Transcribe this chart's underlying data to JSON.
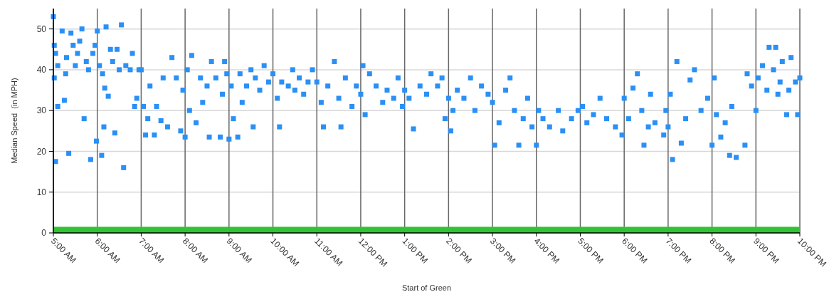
{
  "chart_data": {
    "type": "scatter",
    "xlabel": "Start of Green",
    "ylabel": "Median Speed  (in MPH)",
    "xlim": [
      5,
      22
    ],
    "ylim": [
      0,
      55
    ],
    "yticks": [
      0,
      10,
      20,
      30,
      40,
      50
    ],
    "xticks": [
      {
        "value": 5,
        "label": "5:00 AM"
      },
      {
        "value": 6,
        "label": "6:00 AM"
      },
      {
        "value": 7,
        "label": "7:00 AM"
      },
      {
        "value": 8,
        "label": "8:00 AM"
      },
      {
        "value": 9,
        "label": "9:00 AM"
      },
      {
        "value": 10,
        "label": "10:00 AM"
      },
      {
        "value": 11,
        "label": "11:00 AM"
      },
      {
        "value": 12,
        "label": "12:00 PM"
      },
      {
        "value": 13,
        "label": "1:00 PM"
      },
      {
        "value": 14,
        "label": "2:00 PM"
      },
      {
        "value": 15,
        "label": "3:00 PM"
      },
      {
        "value": 16,
        "label": "4:00 PM"
      },
      {
        "value": 17,
        "label": "5:00 PM"
      },
      {
        "value": 18,
        "label": "6:00 PM"
      },
      {
        "value": 19,
        "label": "7:00 PM"
      },
      {
        "value": 20,
        "label": "8:00 PM"
      },
      {
        "value": 21,
        "label": "9:00 PM"
      },
      {
        "value": 22,
        "label": "10:00 PM"
      }
    ],
    "grid": true,
    "marker": "square",
    "bands": [
      {
        "axis": "y",
        "from": 0,
        "to": 1.5,
        "color": "#33c233"
      }
    ],
    "series": [
      {
        "color": "#2a90f5",
        "x": [
          5.0,
          5.02,
          5.05,
          5.02,
          5.05,
          5.1,
          5.1,
          5.2,
          5.25,
          5.28,
          5.3,
          5.35,
          5.4,
          5.45,
          5.5,
          5.55,
          5.6,
          5.65,
          5.7,
          5.75,
          5.8,
          5.85,
          5.9,
          5.95,
          5.98,
          6.0,
          6.05,
          6.1,
          6.12,
          6.15,
          6.17,
          6.2,
          6.25,
          6.3,
          6.35,
          6.4,
          6.45,
          6.5,
          6.55,
          6.6,
          6.65,
          6.75,
          6.8,
          6.85,
          6.9,
          6.95,
          7.0,
          7.05,
          7.1,
          7.15,
          7.2,
          7.3,
          7.35,
          7.45,
          7.5,
          7.6,
          7.7,
          7.8,
          7.9,
          7.95,
          8.0,
          8.05,
          8.1,
          8.15,
          8.25,
          8.35,
          8.4,
          8.5,
          8.55,
          8.6,
          8.7,
          8.8,
          8.85,
          8.9,
          8.95,
          9.0,
          9.05,
          9.1,
          9.2,
          9.25,
          9.3,
          9.4,
          9.5,
          9.55,
          9.6,
          9.7,
          9.8,
          9.9,
          10.0,
          10.1,
          10.15,
          10.2,
          10.35,
          10.45,
          10.5,
          10.6,
          10.7,
          10.8,
          10.9,
          11.0,
          11.1,
          11.15,
          11.25,
          11.4,
          11.5,
          11.55,
          11.65,
          11.8,
          11.9,
          12.0,
          12.05,
          12.1,
          12.2,
          12.35,
          12.5,
          12.6,
          12.75,
          12.85,
          12.95,
          13.0,
          13.1,
          13.2,
          13.35,
          13.5,
          13.6,
          13.75,
          13.85,
          13.92,
          14.0,
          14.05,
          14.1,
          14.2,
          14.35,
          14.5,
          14.6,
          14.75,
          14.9,
          15.0,
          15.05,
          15.15,
          15.3,
          15.4,
          15.5,
          15.6,
          15.7,
          15.8,
          15.9,
          16.0,
          16.05,
          16.15,
          16.3,
          16.5,
          16.6,
          16.8,
          16.95,
          17.05,
          17.15,
          17.3,
          17.45,
          17.6,
          17.8,
          17.95,
          18.0,
          18.1,
          18.2,
          18.3,
          18.4,
          18.45,
          18.55,
          18.6,
          18.7,
          18.9,
          18.95,
          19.0,
          19.05,
          19.1,
          19.2,
          19.3,
          19.4,
          19.5,
          19.6,
          19.75,
          19.9,
          20.0,
          20.05,
          20.1,
          20.2,
          20.3,
          20.4,
          20.55,
          20.45,
          20.75,
          20.8,
          20.9,
          21.0,
          21.05,
          21.15,
          21.3,
          21.25,
          21.45,
          21.4,
          21.5,
          21.55,
          21.6,
          21.7,
          21.75,
          21.8,
          21.9,
          21.95,
          22.0
        ],
        "values": [
          53,
          46,
          44,
          38,
          17.5,
          31,
          41,
          49.5,
          32.5,
          39,
          43,
          19.5,
          49,
          46,
          41,
          44,
          47,
          50,
          28,
          42,
          40,
          18,
          44,
          46,
          22.5,
          49.5,
          41,
          19,
          39,
          26,
          35.5,
          50.5,
          33.5,
          45,
          42,
          24.5,
          45,
          40,
          51,
          16,
          41,
          40,
          44,
          31,
          33,
          40,
          40,
          31,
          24,
          28,
          36,
          24,
          31,
          27.5,
          38,
          26,
          43,
          38,
          25,
          35,
          23.5,
          40,
          30,
          43.5,
          27,
          38,
          32,
          36,
          23.5,
          42,
          38,
          23.5,
          34,
          42,
          39,
          23,
          36,
          28,
          23.5,
          39,
          32,
          36,
          40,
          26,
          38,
          35,
          41,
          37,
          39,
          33,
          26,
          37,
          36,
          40,
          35,
          38,
          34,
          37,
          40,
          37,
          32,
          26,
          36,
          42,
          33,
          26,
          38,
          31,
          36,
          34,
          41,
          29,
          39,
          36,
          32,
          35,
          33,
          38,
          31,
          35,
          33,
          25.5,
          36,
          34,
          39,
          36,
          38,
          28,
          33,
          25,
          30,
          35,
          33,
          38,
          30,
          36,
          34,
          32,
          21.5,
          27,
          35,
          38,
          30,
          21.5,
          28,
          33,
          26,
          21.5,
          30,
          28,
          26,
          30,
          25,
          28,
          30,
          31,
          27,
          29,
          33,
          28,
          26,
          24,
          33,
          28,
          35.5,
          39,
          30,
          21.5,
          26,
          34,
          27,
          24,
          30,
          26,
          34,
          18,
          42,
          22,
          28,
          37.5,
          40,
          30,
          33,
          21.5,
          38,
          29,
          23.5,
          27,
          19,
          18.5,
          31,
          21.5,
          39,
          36,
          30,
          38,
          41,
          45.5,
          35,
          45.5,
          40,
          34,
          37,
          42,
          29,
          35,
          43,
          37,
          29,
          38
        ]
      }
    ]
  }
}
